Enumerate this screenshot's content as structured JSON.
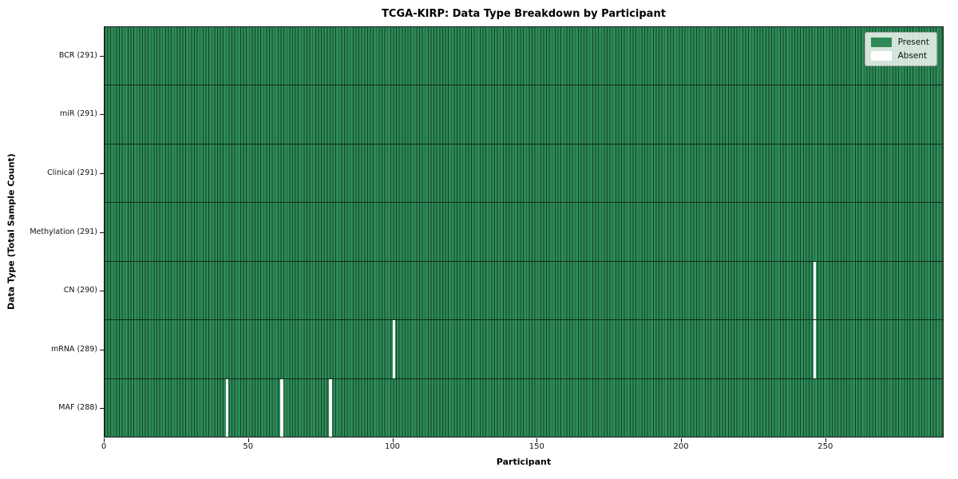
{
  "title": "TCGA-KIRP: Data Type Breakdown by Participant",
  "chart_data": {
    "type": "heatmap",
    "title": "TCGA-KIRP: Data Type Breakdown by Participant",
    "xlabel": "Participant",
    "ylabel": "Data Type (Total Sample Count)",
    "n_participants": 291,
    "x_range": [
      0,
      291
    ],
    "x_ticks": [
      0,
      50,
      100,
      150,
      200,
      250
    ],
    "grid": false,
    "legend_position": "upper right",
    "rows": [
      {
        "label": "BCR (291)",
        "data_type": "BCR",
        "present_count": 291,
        "absent_participants": []
      },
      {
        "label": "miR (291)",
        "data_type": "miR",
        "present_count": 291,
        "absent_participants": []
      },
      {
        "label": "Clinical (291)",
        "data_type": "Clinical",
        "present_count": 291,
        "absent_participants": []
      },
      {
        "label": "Methylation (291)",
        "data_type": "Methylation",
        "present_count": 291,
        "absent_participants": []
      },
      {
        "label": "CN (290)",
        "data_type": "CN",
        "present_count": 290,
        "absent_participants": [
          246
        ]
      },
      {
        "label": "mRNA (289)",
        "data_type": "mRNA",
        "present_count": 289,
        "absent_participants": [
          100,
          246
        ]
      },
      {
        "label": "MAF (288)",
        "data_type": "MAF",
        "present_count": 288,
        "absent_participants": [
          42,
          61,
          78
        ]
      }
    ],
    "legend": [
      {
        "label": "Present",
        "color": "#2e8b57"
      },
      {
        "label": "Absent",
        "color": "#ffffff"
      }
    ],
    "colors": {
      "present": "#2e8b57",
      "absent": "#ffffff",
      "cell_edge": "#0b281a",
      "axis": "#1a1a1a",
      "background": "#ffffff"
    }
  }
}
